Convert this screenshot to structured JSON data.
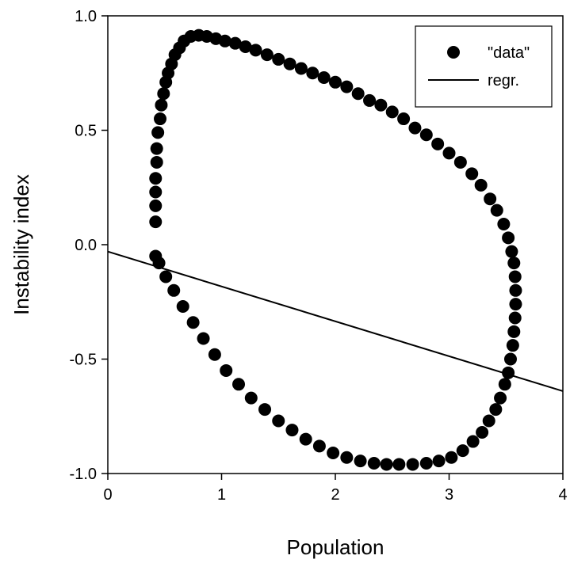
{
  "chart_data": {
    "type": "scatter",
    "title": "",
    "xlabel": "Population",
    "ylabel": "Instability index",
    "xlim": [
      0,
      4
    ],
    "ylim": [
      -1.0,
      1.0
    ],
    "x_ticks": [
      "0",
      "1",
      "2",
      "3",
      "4"
    ],
    "y_ticks": [
      "1.0",
      "0.5",
      "0.0",
      "-0.5",
      "-1.0"
    ],
    "grid": false,
    "legend_position": "top-right",
    "series": [
      {
        "name": "\"data\"",
        "kind": "scatter",
        "color": "#000000",
        "points": [
          [
            0.42,
            0.1
          ],
          [
            0.42,
            0.17
          ],
          [
            0.42,
            0.23
          ],
          [
            0.42,
            0.29
          ],
          [
            0.43,
            0.36
          ],
          [
            0.43,
            0.42
          ],
          [
            0.44,
            0.49
          ],
          [
            0.46,
            0.55
          ],
          [
            0.47,
            0.61
          ],
          [
            0.49,
            0.66
          ],
          [
            0.51,
            0.71
          ],
          [
            0.53,
            0.75
          ],
          [
            0.56,
            0.79
          ],
          [
            0.59,
            0.83
          ],
          [
            0.63,
            0.86
          ],
          [
            0.67,
            0.89
          ],
          [
            0.73,
            0.91
          ],
          [
            0.8,
            0.915
          ],
          [
            0.87,
            0.91
          ],
          [
            0.95,
            0.9
          ],
          [
            1.03,
            0.89
          ],
          [
            1.12,
            0.88
          ],
          [
            1.21,
            0.865
          ],
          [
            1.3,
            0.85
          ],
          [
            1.4,
            0.83
          ],
          [
            1.5,
            0.81
          ],
          [
            1.6,
            0.79
          ],
          [
            1.7,
            0.77
          ],
          [
            1.8,
            0.75
          ],
          [
            1.9,
            0.73
          ],
          [
            2.0,
            0.71
          ],
          [
            2.1,
            0.69
          ],
          [
            2.2,
            0.66
          ],
          [
            2.3,
            0.63
          ],
          [
            2.4,
            0.61
          ],
          [
            2.5,
            0.58
          ],
          [
            2.6,
            0.55
          ],
          [
            2.7,
            0.51
          ],
          [
            2.8,
            0.48
          ],
          [
            2.9,
            0.44
          ],
          [
            3.0,
            0.4
          ],
          [
            3.1,
            0.36
          ],
          [
            3.2,
            0.31
          ],
          [
            3.28,
            0.26
          ],
          [
            3.36,
            0.2
          ],
          [
            3.42,
            0.15
          ],
          [
            3.48,
            0.09
          ],
          [
            3.52,
            0.03
          ],
          [
            3.55,
            -0.03
          ],
          [
            3.57,
            -0.08
          ],
          [
            3.58,
            -0.14
          ],
          [
            3.585,
            -0.2
          ],
          [
            3.585,
            -0.26
          ],
          [
            3.58,
            -0.32
          ],
          [
            3.57,
            -0.38
          ],
          [
            3.56,
            -0.44
          ],
          [
            3.54,
            -0.5
          ],
          [
            3.52,
            -0.56
          ],
          [
            3.49,
            -0.61
          ],
          [
            3.45,
            -0.67
          ],
          [
            3.41,
            -0.72
          ],
          [
            3.35,
            -0.77
          ],
          [
            3.29,
            -0.82
          ],
          [
            3.21,
            -0.86
          ],
          [
            3.12,
            -0.9
          ],
          [
            3.02,
            -0.93
          ],
          [
            2.91,
            -0.945
          ],
          [
            2.8,
            -0.955
          ],
          [
            2.68,
            -0.96
          ],
          [
            2.56,
            -0.96
          ],
          [
            2.45,
            -0.96
          ],
          [
            2.34,
            -0.955
          ],
          [
            2.22,
            -0.945
          ],
          [
            2.1,
            -0.93
          ],
          [
            1.98,
            -0.91
          ],
          [
            1.86,
            -0.88
          ],
          [
            1.74,
            -0.85
          ],
          [
            1.62,
            -0.81
          ],
          [
            1.5,
            -0.77
          ],
          [
            1.38,
            -0.72
          ],
          [
            1.26,
            -0.67
          ],
          [
            1.15,
            -0.61
          ],
          [
            1.04,
            -0.55
          ],
          [
            0.94,
            -0.48
          ],
          [
            0.84,
            -0.41
          ],
          [
            0.75,
            -0.34
          ],
          [
            0.66,
            -0.27
          ],
          [
            0.58,
            -0.2
          ],
          [
            0.51,
            -0.14
          ],
          [
            0.45,
            -0.08
          ],
          [
            0.42,
            -0.05
          ]
        ]
      },
      {
        "name": "regr.",
        "kind": "line",
        "color": "#000000",
        "points": [
          [
            0,
            -0.03
          ],
          [
            4,
            -0.64
          ]
        ]
      }
    ]
  }
}
